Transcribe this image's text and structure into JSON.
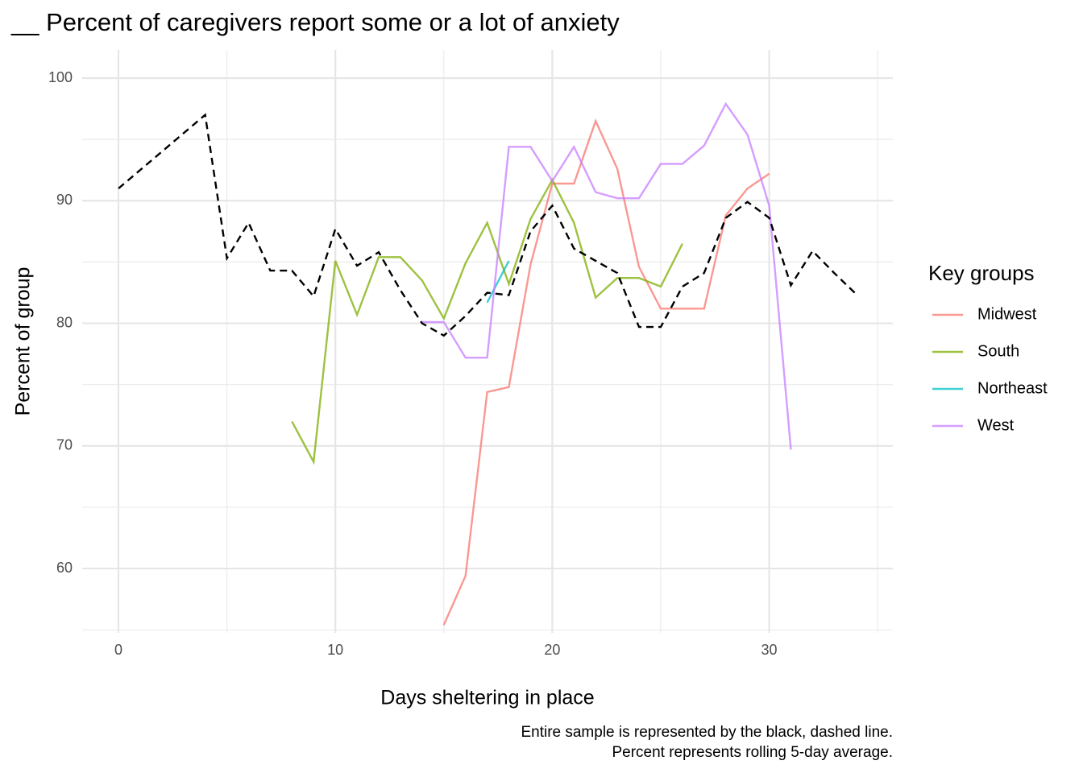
{
  "chart_data": {
    "type": "line",
    "title": "__ Percent of caregivers report some or a lot of anxiety",
    "x_label": "Days sheltering in place",
    "y_label": "Percent of group",
    "caption": [
      "Entire sample is represented by the black, dashed line.",
      "Percent represents rolling 5-day average."
    ],
    "legend_title": "Key groups",
    "legend_position": "right",
    "grid": true,
    "x": [
      0,
      1,
      2,
      3,
      4,
      5,
      6,
      7,
      8,
      9,
      10,
      11,
      12,
      13,
      14,
      15,
      16,
      17,
      18,
      19,
      20,
      21,
      22,
      23,
      24,
      25,
      26,
      27,
      28,
      29,
      30,
      31,
      32,
      33,
      34
    ],
    "reference": {
      "color": "#000000",
      "dashed": true,
      "values": [
        91.0,
        92.5,
        94.0,
        95.5,
        97.0,
        85.3,
        88.2,
        84.3,
        84.3,
        82.2,
        87.7,
        84.7,
        85.8,
        82.7,
        80.0,
        79.0,
        80.6,
        82.5,
        82.3,
        87.5,
        89.6,
        86.1,
        85.1,
        84.1,
        79.7,
        79.7,
        83.0,
        84.1,
        88.6,
        89.9,
        88.6,
        83.1,
        85.9,
        84.1,
        82.4
      ]
    },
    "series": [
      {
        "name": "Midwest",
        "color": "#F8766D",
        "values": [
          null,
          null,
          null,
          null,
          null,
          null,
          null,
          null,
          null,
          null,
          null,
          null,
          null,
          null,
          null,
          55.4,
          59.4,
          74.4,
          74.8,
          84.8,
          91.4,
          91.4,
          96.5,
          92.6,
          84.6,
          81.2,
          81.2,
          81.2,
          88.8,
          91.0,
          92.2,
          null,
          null,
          null,
          null
        ]
      },
      {
        "name": "South",
        "color": "#7CAE00",
        "values": [
          null,
          null,
          null,
          null,
          null,
          null,
          null,
          null,
          72.0,
          68.7,
          85.1,
          80.7,
          85.4,
          85.4,
          83.5,
          80.4,
          84.9,
          88.2,
          83.2,
          88.5,
          91.7,
          88.2,
          82.1,
          83.7,
          83.7,
          83.0,
          86.5,
          null,
          null,
          null,
          null,
          null,
          null,
          null,
          null
        ]
      },
      {
        "name": "Northeast",
        "color": "#00BFC4",
        "values": [
          null,
          null,
          null,
          null,
          null,
          null,
          null,
          null,
          null,
          null,
          null,
          null,
          null,
          null,
          null,
          null,
          null,
          81.7,
          85.1,
          null,
          null,
          null,
          null,
          null,
          null,
          null,
          null,
          null,
          null,
          null,
          null,
          null,
          null,
          null,
          null
        ]
      },
      {
        "name": "West",
        "color": "#C77CFF",
        "values": [
          null,
          null,
          null,
          null,
          null,
          null,
          null,
          null,
          null,
          null,
          null,
          null,
          null,
          null,
          80.1,
          80.1,
          77.2,
          77.2,
          94.4,
          94.4,
          91.6,
          94.4,
          90.7,
          90.2,
          90.2,
          93.0,
          93.0,
          94.5,
          97.9,
          95.4,
          89.6,
          69.7,
          null,
          null,
          null
        ]
      }
    ],
    "xlim": [
      -1.67,
      35.7
    ],
    "xticks": [
      0,
      10,
      20,
      30
    ],
    "xminor": [
      5,
      15,
      25,
      35
    ],
    "ylim": [
      54.75,
      102.3
    ],
    "yticks": [
      60,
      70,
      80,
      90,
      100
    ],
    "yminor": [
      55,
      65,
      75,
      85,
      95
    ]
  }
}
